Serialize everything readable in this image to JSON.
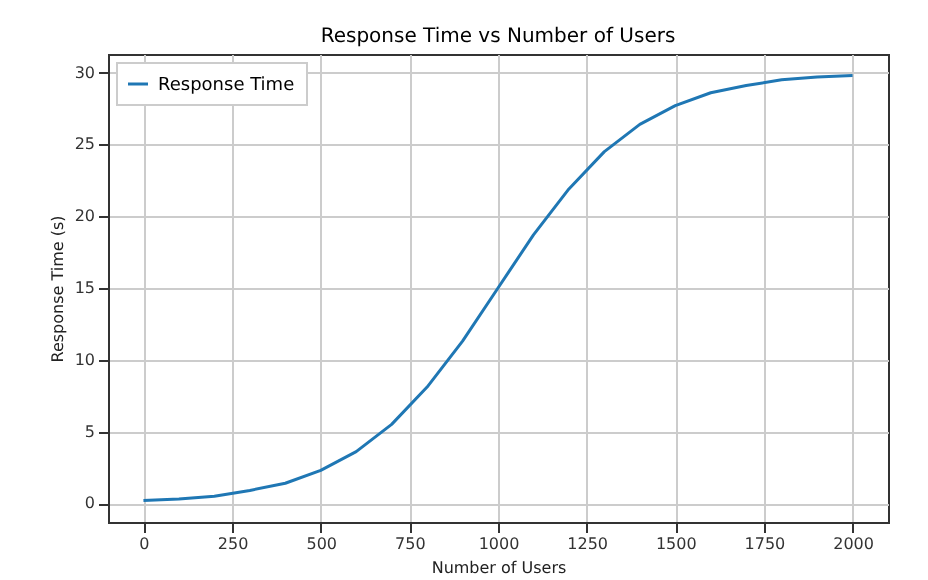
{
  "chart_data": {
    "type": "line",
    "title": "Response Time vs Number of Users",
    "xlabel": "Number of Users",
    "ylabel": "Response Time (s)",
    "x": [
      0,
      100,
      200,
      300,
      400,
      500,
      600,
      700,
      800,
      900,
      1000,
      1100,
      1200,
      1300,
      1400,
      1500,
      1600,
      1700,
      1800,
      1900,
      2000
    ],
    "series": [
      {
        "name": "Response Time",
        "color": "#1f77b4",
        "values": [
          0.2,
          0.3,
          0.5,
          0.9,
          1.4,
          2.3,
          3.6,
          5.5,
          8.1,
          11.3,
          15.0,
          18.7,
          21.9,
          24.5,
          26.4,
          27.7,
          28.6,
          29.1,
          29.5,
          29.7,
          29.8
        ]
      }
    ],
    "xlim": [
      -100,
      2100
    ],
    "xticks": [
      0,
      250,
      500,
      750,
      1000,
      1250,
      1500,
      1750,
      2000
    ],
    "ylim": [
      -1.3,
      31.3
    ],
    "yticks": [
      0,
      5,
      10,
      15,
      20,
      25,
      30
    ],
    "grid": true,
    "legend": "top left"
  }
}
